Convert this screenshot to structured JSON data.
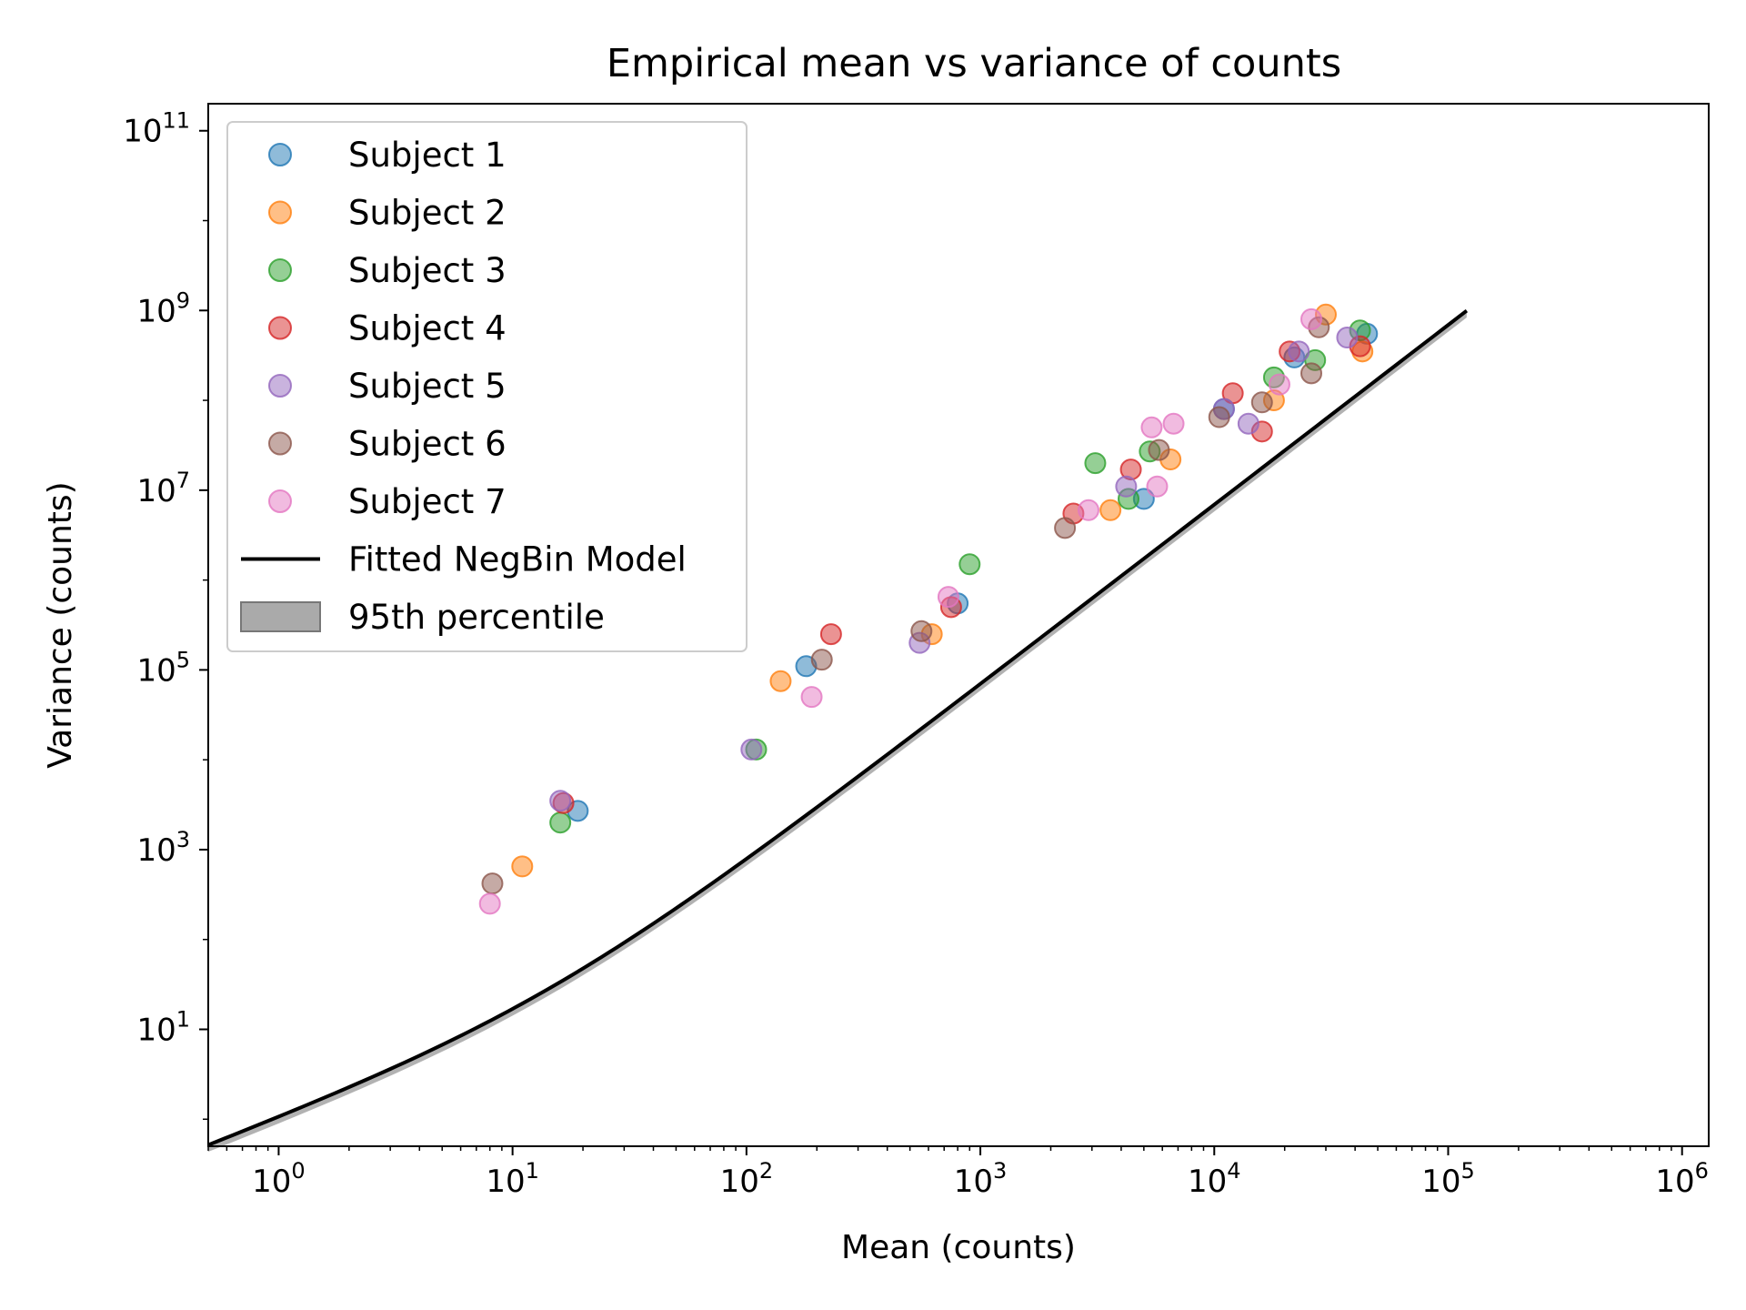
{
  "chart_data": {
    "type": "scatter",
    "title": "Empirical mean vs variance of counts",
    "xlabel": "Mean (counts)",
    "ylabel": "Variance (counts)",
    "xscale": "log",
    "yscale": "log",
    "xlim": [
      0.5,
      1300000
    ],
    "ylim": [
      0.5,
      200000000000
    ],
    "x_ticks": [
      {
        "base": "10",
        "exp": "0"
      },
      {
        "base": "10",
        "exp": "1"
      },
      {
        "base": "10",
        "exp": "2"
      },
      {
        "base": "10",
        "exp": "3"
      },
      {
        "base": "10",
        "exp": "4"
      },
      {
        "base": "10",
        "exp": "5"
      },
      {
        "base": "10",
        "exp": "6"
      }
    ],
    "y_ticks": [
      {
        "base": "10",
        "exp": "1"
      },
      {
        "base": "10",
        "exp": "3"
      },
      {
        "base": "10",
        "exp": "5"
      },
      {
        "base": "10",
        "exp": "7"
      },
      {
        "base": "10",
        "exp": "9"
      },
      {
        "base": "10",
        "exp": "11"
      }
    ],
    "grid": false,
    "legend_position": "upper-left",
    "series": [
      {
        "name": "Subject 1",
        "color": "#1f77b4",
        "points": [
          [
            19,
            2700
          ],
          [
            180,
            110000
          ],
          [
            800,
            550000
          ],
          [
            5000,
            8000000
          ],
          [
            11000,
            80000000
          ],
          [
            22000,
            300000000
          ],
          [
            45000,
            550000000
          ]
        ]
      },
      {
        "name": "Subject 2",
        "color": "#ff7f0e",
        "points": [
          [
            11,
            650
          ],
          [
            140,
            75000
          ],
          [
            620,
            250000
          ],
          [
            3600,
            6000000
          ],
          [
            6500,
            22000000
          ],
          [
            18000,
            100000000
          ],
          [
            30000,
            900000000
          ],
          [
            43000,
            350000000
          ]
        ]
      },
      {
        "name": "Subject 3",
        "color": "#2ca02c",
        "points": [
          [
            16,
            2000
          ],
          [
            110,
            13000
          ],
          [
            900,
            1500000
          ],
          [
            3100,
            20000000
          ],
          [
            4300,
            8000000
          ],
          [
            5300,
            27000000
          ],
          [
            18000,
            180000000
          ],
          [
            27000,
            280000000
          ],
          [
            42000,
            600000000
          ]
        ]
      },
      {
        "name": "Subject 4",
        "color": "#d62728",
        "points": [
          [
            16.5,
            3300
          ],
          [
            230,
            250000
          ],
          [
            750,
            500000
          ],
          [
            2500,
            5500000
          ],
          [
            4400,
            17000000
          ],
          [
            12000,
            120000000
          ],
          [
            16000,
            45000000
          ],
          [
            21000,
            350000000
          ],
          [
            42000,
            400000000
          ]
        ]
      },
      {
        "name": "Subject 5",
        "color": "#9467bd",
        "points": [
          [
            16,
            3500
          ],
          [
            105,
            13000
          ],
          [
            550,
            200000
          ],
          [
            4200,
            11000000
          ],
          [
            11000,
            80000000
          ],
          [
            14000,
            55000000
          ],
          [
            23000,
            350000000
          ],
          [
            37000,
            500000000
          ]
        ]
      },
      {
        "name": "Subject 6",
        "color": "#8c564b",
        "points": [
          [
            8.2,
            420
          ],
          [
            210,
            130000
          ],
          [
            560,
            270000
          ],
          [
            2300,
            3800000
          ],
          [
            5800,
            28000000
          ],
          [
            10500,
            65000000
          ],
          [
            16000,
            95000000
          ],
          [
            26000,
            200000000
          ],
          [
            28000,
            650000000
          ]
        ]
      },
      {
        "name": "Subject 7",
        "color": "#e377c2",
        "points": [
          [
            8,
            250
          ],
          [
            190,
            50000
          ],
          [
            730,
            650000
          ],
          [
            2900,
            6000000
          ],
          [
            5400,
            50000000
          ],
          [
            6700,
            55000000
          ],
          [
            5700,
            11000000
          ],
          [
            19000,
            150000000
          ],
          [
            26000,
            800000000
          ]
        ]
      }
    ],
    "model": {
      "name": "Fitted NegBin Model",
      "band_name": "95th percentile",
      "line_color": "#000000",
      "band_color": "#aaaaaa",
      "phi": 14.5,
      "band_low_factor": 0.84,
      "band_high_factor": 1.03,
      "x_range": [
        0.5,
        120000
      ]
    }
  }
}
